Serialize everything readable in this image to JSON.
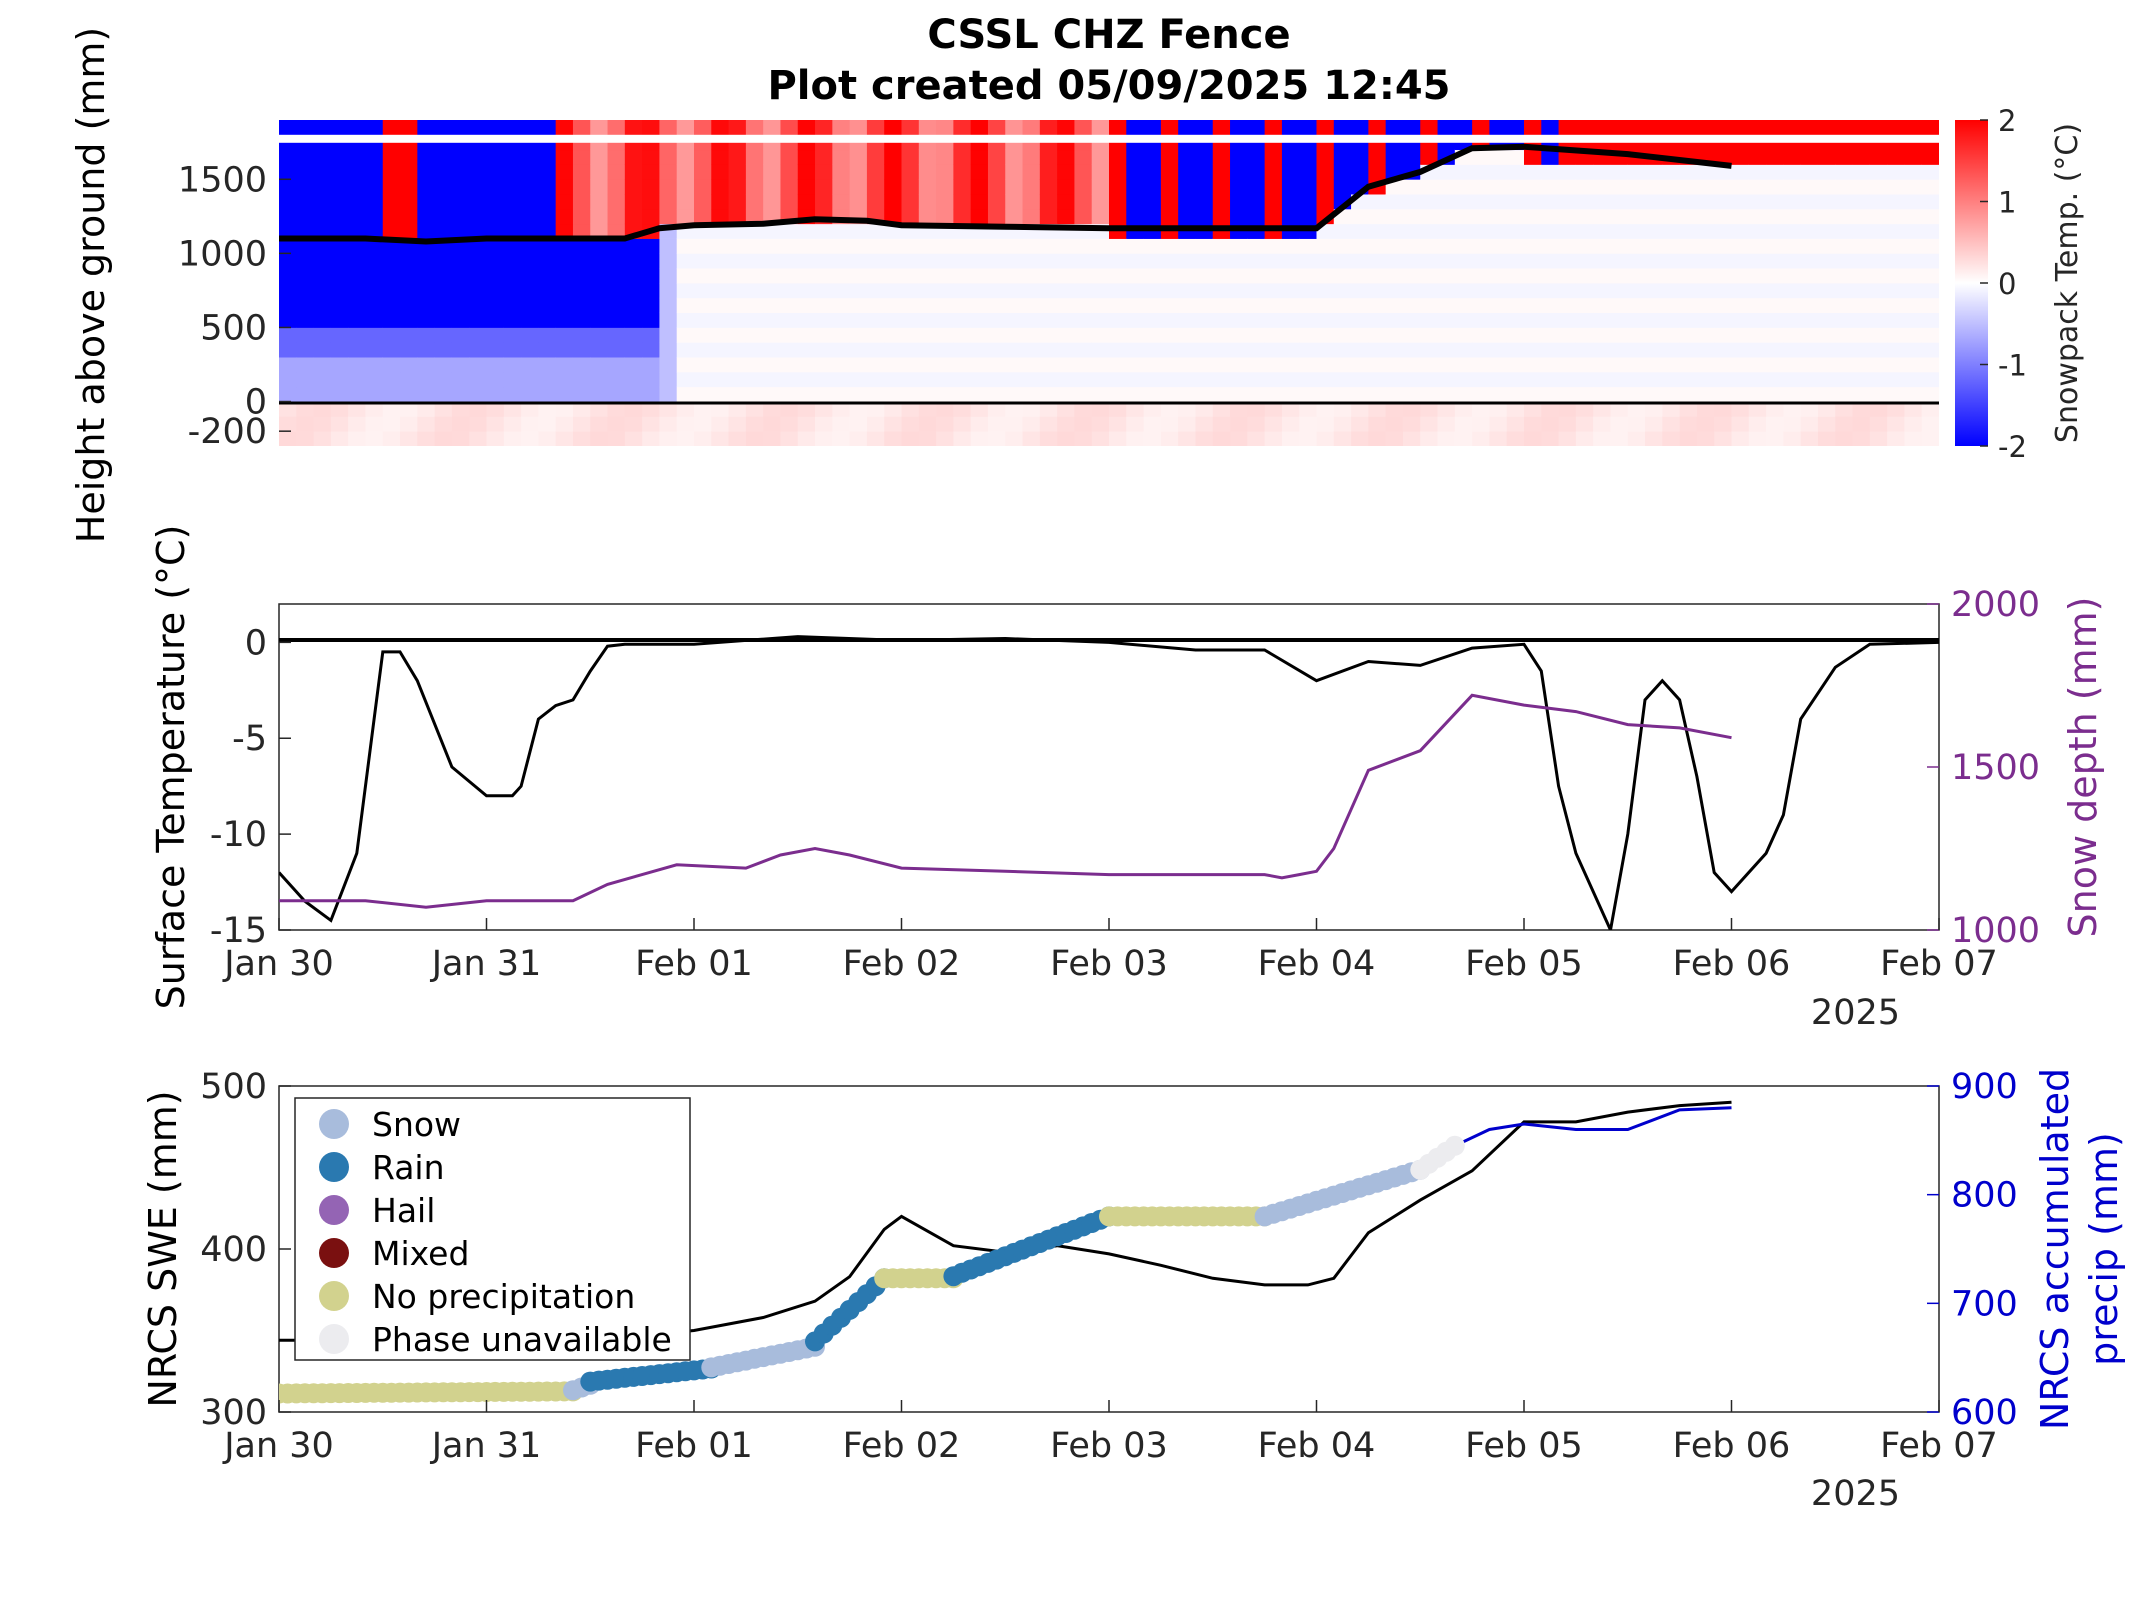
{
  "figure": {
    "title": "CSSL CHZ Fence",
    "subtitle": "Plot created 05/09/2025 12:45"
  },
  "colors": {
    "cold": "#0000ff",
    "warm": "#ff0000",
    "neutral": "#ffffff",
    "surface_temp": "#000000",
    "snow_depth": "#7b2d8e",
    "nrcs_swe": "#000000",
    "nrcs_precip": "#0000cc",
    "snow": "#a8bcdc",
    "rain": "#2a79b0",
    "hail": "#9464b4",
    "mixed": "#7a1010",
    "no_precip": "#d2d28e",
    "phase_unavailable": "#ececef"
  },
  "chart_data": [
    {
      "type": "heatmap",
      "ylabel": "Height above ground (mm)",
      "yticks": [
        -200,
        0,
        500,
        1000,
        1500
      ],
      "ylim": [
        -300,
        1900
      ],
      "xlim": [
        "2025-01-30",
        "2025-02-07"
      ],
      "colorbar": {
        "label": "Snowpack Temp. (°C)",
        "range": [
          -2,
          2
        ],
        "ticks": [
          -2,
          -1,
          0,
          1,
          2
        ]
      },
      "sensor_heights": [
        -250,
        -150,
        -50,
        50,
        150,
        250,
        350,
        450,
        550,
        650,
        750,
        850,
        950,
        1050,
        1150,
        1250,
        1350,
        1450,
        1550,
        1650,
        1750,
        1850
      ],
      "snowpack_temperature_note": "Layers below the snow surface near -2 to -1 °C before Feb 01 and near 0 °C afterwards; air-exposed sensors above the snow surface show warm (+2) or cold (-2) values.",
      "snow_surface_line": {
        "name": "",
        "x": [
          "2025-01-30T00:00",
          "2025-01-30T10:00",
          "2025-01-30T17:00",
          "2025-01-31T00:00",
          "2025-01-31T10:00",
          "2025-01-31T16:00",
          "2025-01-31T20:00",
          "2025-02-01T00:00",
          "2025-02-01T08:00",
          "2025-02-01T14:00",
          "2025-02-01T20:00",
          "2025-02-02T00:00",
          "2025-02-02T12:00",
          "2025-02-03T00:00",
          "2025-02-03T20:00",
          "2025-02-04T00:00",
          "2025-02-04T06:00",
          "2025-02-04T12:00",
          "2025-02-04T18:00",
          "2025-02-05T00:00",
          "2025-02-05T12:00",
          "2025-02-06T00:00"
        ],
        "y": [
          1100,
          1100,
          1080,
          1100,
          1100,
          1100,
          1170,
          1190,
          1200,
          1230,
          1220,
          1190,
          1180,
          1170,
          1170,
          1170,
          1450,
          1550,
          1710,
          1720,
          1670,
          1590
        ]
      }
    },
    {
      "type": "line",
      "ylabel": "Surface Temperature (°C)",
      "ylabel_right": "Snow depth (mm)",
      "ylim": [
        -15,
        2
      ],
      "ylim_right": [
        1000,
        2000
      ],
      "yticks": [
        -15,
        -10,
        -5,
        0
      ],
      "yticks_right": [
        1000,
        1500,
        2000
      ],
      "xticks": [
        "Jan 30",
        "Jan 31",
        "Feb 01",
        "Feb 02",
        "Feb 03",
        "Feb 04",
        "Feb 05",
        "Feb 06",
        "Feb 07"
      ],
      "year_label": "2025",
      "series": [
        {
          "axis": "left",
          "x": [
            "2025-01-30T00:00",
            "2025-01-30T03:00",
            "2025-01-30T06:00",
            "2025-01-30T09:00",
            "2025-01-30T11:00",
            "2025-01-30T12:00",
            "2025-01-30T14:00",
            "2025-01-30T16:00",
            "2025-01-30T20:00",
            "2025-01-31T00:00",
            "2025-01-31T03:00",
            "2025-01-31T04:00",
            "2025-01-31T06:00",
            "2025-01-31T08:00",
            "2025-01-31T10:00",
            "2025-01-31T12:00",
            "2025-01-31T14:00",
            "2025-01-31T16:00",
            "2025-02-01T00:00",
            "2025-02-01T12:00",
            "2025-02-02T00:00",
            "2025-02-02T12:00",
            "2025-02-03T00:00",
            "2025-02-03T10:00",
            "2025-02-03T18:00",
            "2025-02-04T00:00",
            "2025-02-04T06:00",
            "2025-02-04T12:00",
            "2025-02-04T18:00",
            "2025-02-05T00:00",
            "2025-02-05T02:00",
            "2025-02-05T04:00",
            "2025-02-05T06:00",
            "2025-02-05T08:00",
            "2025-02-05T10:00",
            "2025-02-05T12:00",
            "2025-02-05T14:00",
            "2025-02-05T16:00",
            "2025-02-05T18:00",
            "2025-02-05T20:00",
            "2025-02-05T22:00",
            "2025-02-06T00:00",
            "2025-02-06T04:00",
            "2025-02-06T06:00",
            "2025-02-06T08:00",
            "2025-02-06T12:00",
            "2025-02-06T16:00",
            "2025-02-07T00:00"
          ],
          "values": [
            -12,
            -13.5,
            -14.5,
            -11,
            -4,
            -0.5,
            -0.5,
            -2,
            -6.5,
            -8,
            -8,
            -7.5,
            -4,
            -3.3,
            -3,
            -1.5,
            -0.2,
            -0.1,
            -0.1,
            0.3,
            0.1,
            0.2,
            0,
            -0.4,
            -0.4,
            -2,
            -1,
            -1.2,
            -0.3,
            -0.1,
            -1.5,
            -7.5,
            -11,
            -13,
            -15,
            -10,
            -3,
            -2,
            -3,
            -7,
            -12,
            -13,
            -11,
            -9,
            -4,
            -1.3,
            -0.1,
            0
          ]
        },
        {
          "axis": "right",
          "x": [
            "2025-01-30T00:00",
            "2025-01-30T10:00",
            "2025-01-30T17:00",
            "2025-01-31T00:00",
            "2025-01-31T10:00",
            "2025-01-31T14:00",
            "2025-01-31T18:00",
            "2025-01-31T22:00",
            "2025-02-01T06:00",
            "2025-02-01T10:00",
            "2025-02-01T14:00",
            "2025-02-01T18:00",
            "2025-02-02T00:00",
            "2025-02-02T12:00",
            "2025-02-03T00:00",
            "2025-02-03T18:00",
            "2025-02-03T20:00",
            "2025-02-03T22:00",
            "2025-02-04T00:00",
            "2025-02-04T02:00",
            "2025-02-04T06:00",
            "2025-02-04T12:00",
            "2025-02-04T18:00",
            "2025-02-05T00:00",
            "2025-02-05T06:00",
            "2025-02-05T12:00",
            "2025-02-05T18:00",
            "2025-02-06T00:00"
          ],
          "values": [
            1090,
            1090,
            1070,
            1090,
            1090,
            1140,
            1170,
            1200,
            1190,
            1230,
            1250,
            1230,
            1190,
            1180,
            1170,
            1170,
            1160,
            1170,
            1180,
            1250,
            1490,
            1550,
            1720,
            1690,
            1670,
            1630,
            1620,
            1590
          ]
        }
      ]
    },
    {
      "type": "line",
      "ylabel": "NRCS SWE (mm)",
      "ylabel_right_lines": [
        "NRCS accumulated",
        "precip (mm)"
      ],
      "ylim": [
        300,
        500
      ],
      "ylim_right": [
        600,
        900
      ],
      "yticks": [
        300,
        400,
        500
      ],
      "yticks_right": [
        600,
        700,
        800,
        900
      ],
      "xticks": [
        "Jan 30",
        "Jan 31",
        "Feb 01",
        "Feb 02",
        "Feb 03",
        "Feb 04",
        "Feb 05",
        "Feb 06",
        "Feb 07"
      ],
      "year_label": "2025",
      "legend": {
        "position": "upper-left",
        "entries": [
          "Snow",
          "Rain",
          "Hail",
          "Mixed",
          "No precipitation",
          "Phase unavailable"
        ]
      },
      "series": [
        {
          "axis": "left",
          "x": [
            "2025-01-30T00:00",
            "2025-01-31T00:00",
            "2025-01-31T12:00",
            "2025-02-01T00:00",
            "2025-02-01T08:00",
            "2025-02-01T14:00",
            "2025-02-01T18:00",
            "2025-02-01T22:00",
            "2025-02-02T00:00",
            "2025-02-02T06:00",
            "2025-02-02T12:00",
            "2025-02-02T18:00",
            "2025-02-03T00:00",
            "2025-02-03T06:00",
            "2025-02-03T12:00",
            "2025-02-03T18:00",
            "2025-02-03T23:00",
            "2025-02-04T02:00",
            "2025-02-04T06:00",
            "2025-02-04T12:00",
            "2025-02-04T18:00",
            "2025-02-05T00:00",
            "2025-02-05T06:00",
            "2025-02-05T12:00",
            "2025-02-05T18:00",
            "2025-02-06T00:00"
          ],
          "values": [
            344,
            344,
            344,
            350,
            358,
            368,
            383,
            412,
            420,
            402,
            398,
            402,
            397,
            390,
            382,
            378,
            378,
            382,
            410,
            430,
            448,
            478,
            478,
            484,
            488,
            490
          ]
        },
        {
          "axis": "right",
          "x": [
            "2025-02-04T16:00",
            "2025-02-04T20:00",
            "2025-02-05T00:00",
            "2025-02-05T06:00",
            "2025-02-05T12:00",
            "2025-02-05T18:00",
            "2025-02-06T00:00"
          ],
          "values": [
            845,
            860,
            865,
            860,
            860,
            878,
            880
          ]
        },
        {
          "axis": "right",
          "name_key": "precip_phase",
          "segments": [
            {
              "phase": "no_precip",
              "from": "2025-01-30T00:00",
              "to": "2025-01-31T10:00",
              "values_from": 617,
              "values_to": 619
            },
            {
              "phase": "snow",
              "from": "2025-01-31T10:00",
              "to": "2025-01-31T12:00",
              "values_from": 620,
              "values_to": 625
            },
            {
              "phase": "rain",
              "from": "2025-01-31T12:00",
              "to": "2025-02-01T02:00",
              "values_from": 628,
              "values_to": 640
            },
            {
              "phase": "snow",
              "from": "2025-02-01T02:00",
              "to": "2025-02-01T14:00",
              "values_from": 641,
              "values_to": 660
            },
            {
              "phase": "rain",
              "from": "2025-02-01T14:00",
              "to": "2025-02-01T22:00",
              "values_from": 665,
              "values_to": 723
            },
            {
              "phase": "no_precip",
              "from": "2025-02-01T22:00",
              "to": "2025-02-02T06:00",
              "values_from": 723,
              "values_to": 723
            },
            {
              "phase": "rain",
              "from": "2025-02-02T06:00",
              "to": "2025-02-03T00:00",
              "values_from": 725,
              "values_to": 780
            },
            {
              "phase": "no_precip",
              "from": "2025-02-03T00:00",
              "to": "2025-02-03T18:00",
              "values_from": 780,
              "values_to": 780
            },
            {
              "phase": "snow",
              "from": "2025-02-03T18:00",
              "to": "2025-02-04T12:00",
              "values_from": 780,
              "values_to": 823
            },
            {
              "phase": "phase_unavailable",
              "from": "2025-02-04T12:00",
              "to": "2025-02-04T16:00",
              "values_from": 823,
              "values_to": 845
            }
          ]
        }
      ]
    }
  ]
}
